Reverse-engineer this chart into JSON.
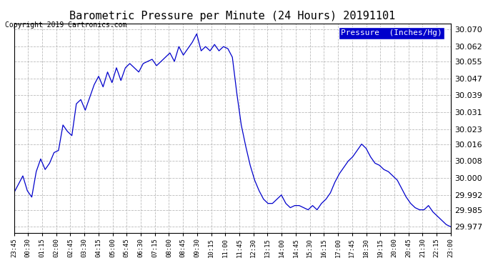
{
  "title": "Barometric Pressure per Minute (24 Hours) 20191101",
  "copyright": "Copyright 2019 Cartronics.com",
  "legend_label": "Pressure  (Inches/Hg)",
  "line_color": "#0000CC",
  "background_color": "#ffffff",
  "plot_bg_color": "#ffffff",
  "grid_color": "#aaaaaa",
  "ylim": [
    29.974,
    30.073
  ],
  "yticks": [
    29.977,
    29.985,
    29.992,
    30.0,
    30.008,
    30.016,
    30.023,
    30.031,
    30.039,
    30.047,
    30.055,
    30.062,
    30.07
  ],
  "xtick_labels": [
    "23:45",
    "00:30",
    "01:15",
    "02:00",
    "02:45",
    "03:30",
    "04:15",
    "05:00",
    "05:45",
    "06:30",
    "07:15",
    "08:00",
    "08:45",
    "09:30",
    "10:15",
    "11:00",
    "11:45",
    "12:30",
    "13:15",
    "14:00",
    "14:45",
    "15:30",
    "16:15",
    "17:00",
    "17:45",
    "18:30",
    "19:15",
    "20:00",
    "20:45",
    "21:30",
    "22:15",
    "23:00"
  ],
  "pressure_data": [
    29.993,
    29.997,
    30.001,
    29.994,
    29.991,
    30.003,
    30.009,
    30.004,
    30.007,
    30.012,
    30.013,
    30.025,
    30.022,
    30.02,
    30.035,
    30.037,
    30.032,
    30.038,
    30.044,
    30.048,
    30.043,
    30.05,
    30.045,
    30.052,
    30.046,
    30.052,
    30.054,
    30.052,
    30.05,
    30.054,
    30.055,
    30.056,
    30.053,
    30.055,
    30.057,
    30.059,
    30.055,
    30.062,
    30.058,
    30.061,
    30.064,
    30.068,
    30.06,
    30.062,
    30.06,
    30.063,
    30.06,
    30.062,
    30.061,
    30.057,
    30.04,
    30.025,
    30.015,
    30.006,
    29.999,
    29.994,
    29.99,
    29.988,
    29.988,
    29.99,
    29.992,
    29.988,
    29.986,
    29.987,
    29.987,
    29.986,
    29.985,
    29.987,
    29.985,
    29.988,
    29.99,
    29.993,
    29.998,
    30.002,
    30.005,
    30.008,
    30.01,
    30.013,
    30.016,
    30.014,
    30.01,
    30.007,
    30.006,
    30.004,
    30.003,
    30.001,
    29.999,
    29.995,
    29.991,
    29.988,
    29.986,
    29.985,
    29.985,
    29.987,
    29.984,
    29.982,
    29.98,
    29.978,
    29.977
  ]
}
